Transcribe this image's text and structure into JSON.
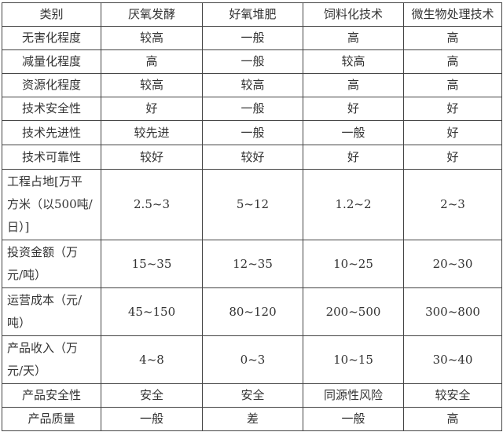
{
  "table": {
    "headers": [
      "类别",
      "厌氧发酵",
      "好氧堆肥",
      "饲料化技术",
      "微生物处理技术"
    ],
    "rows": [
      [
        "无害化程度",
        "较高",
        "一般",
        "高",
        "高"
      ],
      [
        "减量化程度",
        "高",
        "一般",
        "较高",
        "高"
      ],
      [
        "资源化程度",
        "较高",
        "较高",
        "高",
        "高"
      ],
      [
        "技术安全性",
        "好",
        "一般",
        "好",
        "好"
      ],
      [
        "技术先进性",
        "较先进",
        "一般",
        "一般",
        "好"
      ],
      [
        "技术可靠性",
        "较好",
        "较好",
        "好",
        "好"
      ],
      [
        "工程占地[万平\n方米（以500吨/\n日）]",
        "2.5~3",
        "5~12",
        "1.2~2",
        "2~3"
      ],
      [
        "投资金额（万\n元/吨）",
        "15~35",
        "12~35",
        "10~25",
        "20~30"
      ],
      [
        "运营成本（元/\n吨）",
        "45~150",
        "80~120",
        "200~500",
        "300~800"
      ],
      [
        "产品收入（万\n元/天）",
        "4~8",
        "0~3",
        "10~15",
        "30~40"
      ],
      [
        "产品安全性",
        "安全",
        "安全",
        "同源性风险",
        "较安全"
      ],
      [
        "产品质量",
        "一般",
        "差",
        "一般",
        "高"
      ]
    ]
  }
}
